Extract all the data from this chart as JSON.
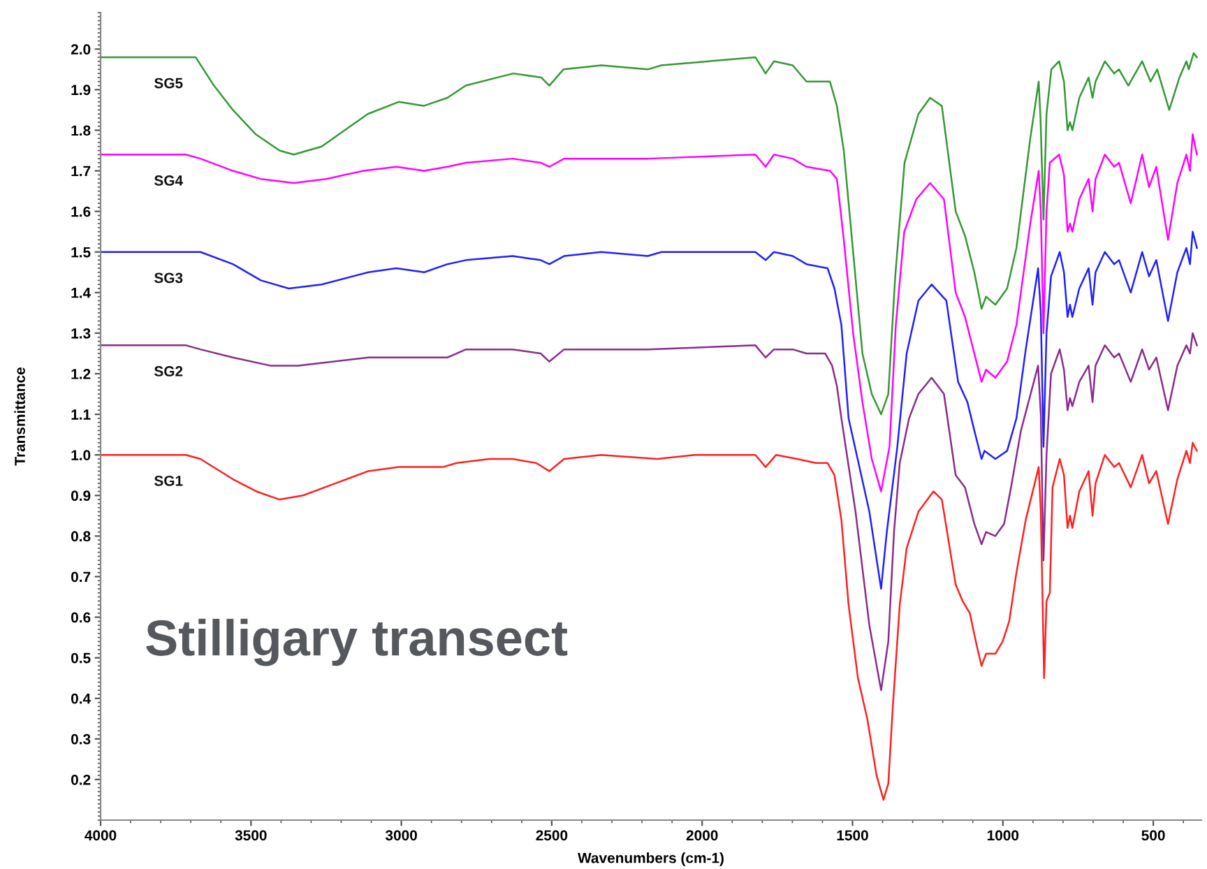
{
  "chart_data": {
    "type": "line",
    "xlabel": "Wavenumbers (cm-1)",
    "ylabel": "Transmittance",
    "annotations": [
      "Stilligary transect"
    ],
    "xlim": [
      4000,
      340
    ],
    "xticks": [
      4000,
      3500,
      3000,
      2500,
      2000,
      1500,
      1000,
      500
    ],
    "ylim": [
      0.1,
      2.09
    ],
    "yticks": [
      0.2,
      0.3,
      0.4,
      0.5,
      0.6,
      0.7,
      0.8,
      0.9,
      {
        "value": 1,
        "label": "1.0"
      },
      1.1,
      1.2,
      1.3,
      1.4,
      1.5,
      1.6,
      1.7,
      1.8,
      1.9,
      {
        "value": 2,
        "label": "2.0"
      }
    ],
    "series": [
      {
        "name": "SG1",
        "color": "#ff2020",
        "x": [
          4000,
          3716,
          3668,
          3560,
          3482,
          3405,
          3327,
          3219,
          3110,
          3009,
          2940,
          2862,
          2816,
          2707,
          2630,
          2552,
          2508,
          2459,
          2335,
          2149,
          2025,
          1823,
          1789,
          1754,
          1684,
          1622,
          1583,
          1560,
          1537,
          1513,
          1482,
          1451,
          1420,
          1397,
          1381,
          1366,
          1343,
          1320,
          1281,
          1231,
          1203,
          1157,
          1134,
          1110,
          1087,
          1071,
          1056,
          1025,
          1001,
          979,
          955,
          924,
          881,
          874,
          863,
          855,
          844,
          835,
          811,
          797,
          785,
          777,
          769,
          746,
          715,
          702,
          692,
          661,
          630,
          614,
          575,
          537,
          514,
          490,
          451,
          420,
          390,
          378,
          369,
          355
        ],
        "values": [
          1.0,
          1.0,
          0.99,
          0.94,
          0.91,
          0.89,
          0.9,
          0.93,
          0.96,
          0.97,
          0.97,
          0.97,
          0.98,
          0.99,
          0.99,
          0.98,
          0.96,
          0.99,
          1.0,
          0.99,
          1.0,
          1.0,
          0.97,
          1.0,
          0.99,
          0.98,
          0.98,
          0.95,
          0.84,
          0.63,
          0.45,
          0.35,
          0.21,
          0.15,
          0.19,
          0.38,
          0.63,
          0.77,
          0.86,
          0.91,
          0.89,
          0.68,
          0.64,
          0.61,
          0.53,
          0.48,
          0.51,
          0.51,
          0.54,
          0.59,
          0.71,
          0.84,
          0.97,
          0.86,
          0.45,
          0.64,
          0.66,
          0.92,
          0.99,
          0.95,
          0.82,
          0.85,
          0.82,
          0.91,
          0.96,
          0.85,
          0.93,
          1.0,
          0.97,
          0.98,
          0.92,
          1.0,
          0.93,
          0.96,
          0.83,
          0.94,
          1.01,
          0.98,
          1.03,
          1.01
        ]
      },
      {
        "name": "SG2",
        "color": "#8b2b8b",
        "x": [
          4000,
          3716,
          3668,
          3560,
          3436,
          3343,
          3110,
          3017,
          2908,
          2847,
          2785,
          2630,
          2537,
          2508,
          2459,
          2335,
          2181,
          1823,
          1789,
          1761,
          1699,
          1653,
          1591,
          1568,
          1552,
          1537,
          1490,
          1444,
          1405,
          1381,
          1362,
          1343,
          1312,
          1281,
          1237,
          1196,
          1157,
          1126,
          1095,
          1071,
          1056,
          1025,
          996,
          973,
          940,
          883,
          874,
          865,
          855,
          840,
          811,
          797,
          785,
          777,
          769,
          746,
          715,
          702,
          692,
          661,
          630,
          614,
          575,
          537,
          514,
          490,
          451,
          420,
          390,
          378,
          369,
          355
        ],
        "values": [
          1.27,
          1.27,
          1.26,
          1.24,
          1.22,
          1.22,
          1.24,
          1.24,
          1.24,
          1.24,
          1.26,
          1.26,
          1.25,
          1.23,
          1.26,
          1.26,
          1.26,
          1.27,
          1.24,
          1.26,
          1.26,
          1.25,
          1.25,
          1.22,
          1.17,
          1.09,
          0.86,
          0.58,
          0.42,
          0.54,
          0.81,
          0.98,
          1.09,
          1.15,
          1.19,
          1.15,
          0.95,
          0.92,
          0.83,
          0.78,
          0.81,
          0.8,
          0.83,
          0.92,
          1.06,
          1.22,
          1.1,
          0.74,
          1.0,
          1.2,
          1.26,
          1.21,
          1.11,
          1.14,
          1.12,
          1.18,
          1.22,
          1.13,
          1.22,
          1.27,
          1.24,
          1.25,
          1.18,
          1.26,
          1.21,
          1.24,
          1.11,
          1.22,
          1.27,
          1.25,
          1.3,
          1.27
        ]
      },
      {
        "name": "SG3",
        "color": "#2020ff",
        "x": [
          4000,
          3716,
          3668,
          3560,
          3467,
          3374,
          3265,
          3110,
          3017,
          2924,
          2847,
          2785,
          2630,
          2537,
          2508,
          2459,
          2335,
          2181,
          2135,
          1823,
          1789,
          1761,
          1699,
          1653,
          1583,
          1560,
          1537,
          1513,
          1444,
          1405,
          1386,
          1351,
          1320,
          1281,
          1237,
          1188,
          1149,
          1118,
          1095,
          1071,
          1061,
          1025,
          986,
          955,
          924,
          883,
          874,
          865,
          855,
          840,
          811,
          797,
          785,
          777,
          769,
          746,
          715,
          702,
          692,
          661,
          630,
          614,
          575,
          537,
          514,
          490,
          451,
          420,
          390,
          378,
          369,
          355
        ],
        "values": [
          1.5,
          1.5,
          1.5,
          1.47,
          1.43,
          1.41,
          1.42,
          1.45,
          1.46,
          1.45,
          1.47,
          1.48,
          1.49,
          1.48,
          1.47,
          1.49,
          1.5,
          1.49,
          1.5,
          1.5,
          1.48,
          1.5,
          1.49,
          1.47,
          1.46,
          1.41,
          1.32,
          1.09,
          0.86,
          0.67,
          0.81,
          1.02,
          1.25,
          1.38,
          1.42,
          1.38,
          1.18,
          1.13,
          1.06,
          0.99,
          1.01,
          0.99,
          1.01,
          1.09,
          1.26,
          1.46,
          1.35,
          1.02,
          1.3,
          1.44,
          1.5,
          1.45,
          1.34,
          1.37,
          1.34,
          1.41,
          1.46,
          1.37,
          1.45,
          1.5,
          1.47,
          1.48,
          1.4,
          1.5,
          1.44,
          1.48,
          1.33,
          1.45,
          1.51,
          1.47,
          1.55,
          1.51
        ]
      },
      {
        "name": "SG4",
        "color": "#ff00ff",
        "x": [
          4000,
          3716,
          3668,
          3560,
          3467,
          3358,
          3250,
          3126,
          3017,
          2924,
          2847,
          2785,
          2630,
          2537,
          2508,
          2459,
          2335,
          2181,
          1823,
          1789,
          1761,
          1699,
          1653,
          1575,
          1552,
          1544,
          1529,
          1498,
          1467,
          1436,
          1405,
          1377,
          1356,
          1328,
          1288,
          1242,
          1196,
          1157,
          1126,
          1095,
          1071,
          1056,
          1025,
          986,
          955,
          909,
          881,
          874,
          865,
          855,
          844,
          813,
          797,
          785,
          777,
          769,
          746,
          715,
          702,
          692,
          661,
          630,
          614,
          575,
          537,
          514,
          490,
          451,
          420,
          390,
          378,
          369,
          355
        ],
        "values": [
          1.74,
          1.74,
          1.73,
          1.7,
          1.68,
          1.67,
          1.68,
          1.7,
          1.71,
          1.7,
          1.71,
          1.72,
          1.73,
          1.72,
          1.71,
          1.73,
          1.73,
          1.73,
          1.74,
          1.71,
          1.74,
          1.73,
          1.71,
          1.7,
          1.68,
          1.63,
          1.53,
          1.3,
          1.13,
          0.99,
          0.91,
          1.02,
          1.32,
          1.55,
          1.63,
          1.67,
          1.63,
          1.4,
          1.34,
          1.25,
          1.18,
          1.21,
          1.19,
          1.23,
          1.32,
          1.57,
          1.7,
          1.6,
          1.3,
          1.6,
          1.72,
          1.74,
          1.69,
          1.55,
          1.57,
          1.55,
          1.63,
          1.68,
          1.6,
          1.68,
          1.74,
          1.71,
          1.72,
          1.62,
          1.74,
          1.66,
          1.71,
          1.53,
          1.67,
          1.74,
          1.7,
          1.79,
          1.74
        ]
      },
      {
        "name": "SG5",
        "color": "#339933",
        "x": [
          4000,
          3716,
          3684,
          3623,
          3560,
          3484,
          3405,
          3358,
          3265,
          3112,
          3009,
          2926,
          2847,
          2786,
          2628,
          2535,
          2508,
          2461,
          2335,
          2181,
          2135,
          1823,
          1789,
          1761,
          1699,
          1653,
          1575,
          1552,
          1529,
          1498,
          1467,
          1436,
          1405,
          1381,
          1358,
          1327,
          1281,
          1242,
          1203,
          1157,
          1126,
          1095,
          1071,
          1056,
          1025,
          986,
          955,
          909,
          881,
          875,
          865,
          855,
          839,
          813,
          797,
          785,
          777,
          769,
          746,
          715,
          702,
          692,
          661,
          630,
          614,
          583,
          537,
          509,
          487,
          447,
          413,
          390,
          382,
          366,
          355
        ],
        "values": [
          1.98,
          1.98,
          1.98,
          1.91,
          1.85,
          1.79,
          1.75,
          1.74,
          1.76,
          1.84,
          1.87,
          1.86,
          1.88,
          1.91,
          1.94,
          1.93,
          1.91,
          1.95,
          1.96,
          1.95,
          1.96,
          1.98,
          1.94,
          1.97,
          1.96,
          1.92,
          1.92,
          1.86,
          1.75,
          1.5,
          1.25,
          1.15,
          1.1,
          1.15,
          1.44,
          1.72,
          1.84,
          1.88,
          1.86,
          1.6,
          1.54,
          1.45,
          1.36,
          1.39,
          1.37,
          1.41,
          1.51,
          1.78,
          1.92,
          1.83,
          1.58,
          1.84,
          1.95,
          1.97,
          1.92,
          1.8,
          1.82,
          1.8,
          1.88,
          1.93,
          1.88,
          1.92,
          1.97,
          1.94,
          1.95,
          1.91,
          1.97,
          1.92,
          1.95,
          1.85,
          1.93,
          1.97,
          1.95,
          1.99,
          1.98
        ]
      }
    ]
  }
}
